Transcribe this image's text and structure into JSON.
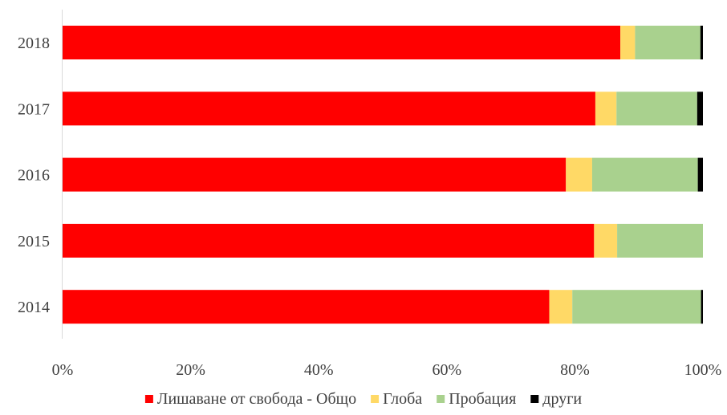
{
  "chart_data": {
    "type": "bar",
    "orientation": "horizontal",
    "stacked": "percent",
    "categories": [
      "2018",
      "2017",
      "2016",
      "2015",
      "2014"
    ],
    "series": [
      {
        "name": "Лишаване от свобода - Общо",
        "color": "#ff0000",
        "values": [
          87.1,
          83.2,
          78.6,
          83.0,
          76.0
        ]
      },
      {
        "name": "Глоба",
        "color": "#ffd966",
        "values": [
          2.3,
          3.3,
          4.1,
          3.6,
          3.6
        ]
      },
      {
        "name": "Пробация",
        "color": "#a9d18e",
        "values": [
          10.2,
          12.6,
          16.5,
          13.4,
          20.1
        ]
      },
      {
        "name": "други",
        "color": "#000000",
        "values": [
          0.4,
          0.9,
          0.8,
          0.0,
          0.3
        ]
      }
    ],
    "x_ticks": [
      "0%",
      "20%",
      "40%",
      "60%",
      "80%",
      "100%"
    ],
    "xlim": [
      0,
      100
    ],
    "grid": false,
    "legend_position": "bottom"
  }
}
